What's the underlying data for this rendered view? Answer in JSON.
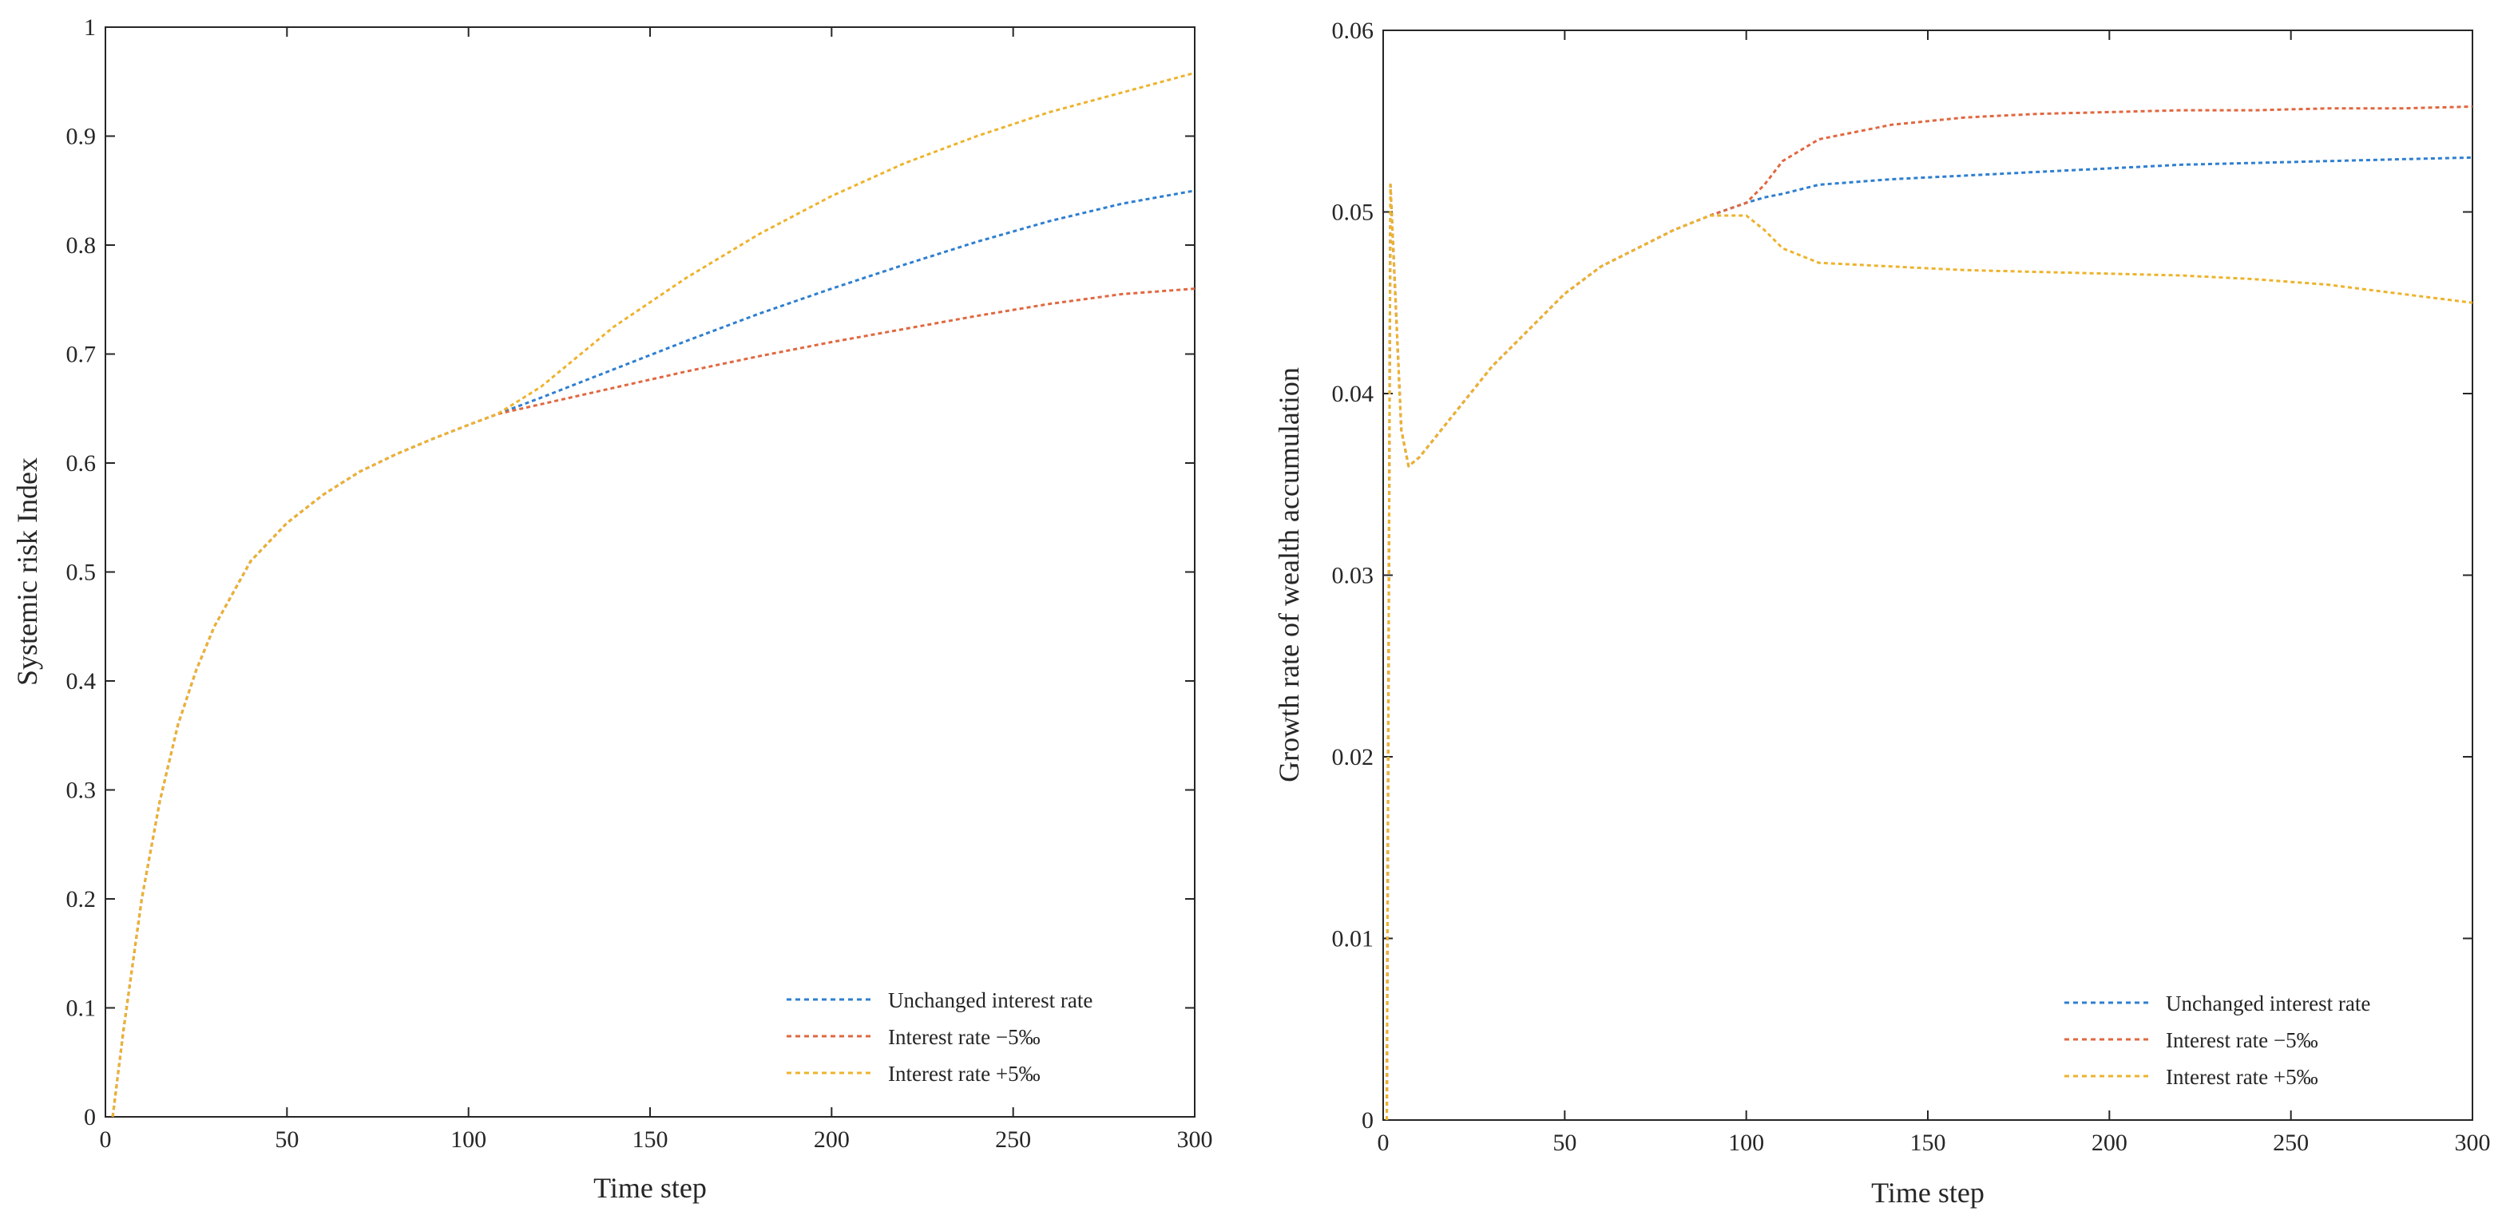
{
  "chart_data": [
    {
      "type": "line",
      "title": "",
      "xlabel": "Time step",
      "ylabel": "Systemic risk Index",
      "xlim": [
        0,
        300
      ],
      "ylim": [
        0,
        1
      ],
      "xticks": [
        0,
        50,
        100,
        150,
        200,
        250,
        300
      ],
      "yticks": [
        0,
        0.1,
        0.2,
        0.3,
        0.4,
        0.5,
        0.6,
        0.7,
        0.8,
        0.9,
        1
      ],
      "ytick_labels": [
        "0",
        "0.1",
        "0.2",
        "0.3",
        "0.4",
        "0.5",
        "0.6",
        "0.7",
        "0.8",
        "0.9",
        "1"
      ],
      "legend_position": "bottom-right",
      "series": [
        {
          "name": "Unchanged interest rate",
          "color": "#2f7fcf",
          "x": [
            2,
            5,
            10,
            15,
            20,
            25,
            30,
            40,
            50,
            60,
            70,
            80,
            90,
            100,
            108,
            120,
            140,
            160,
            180,
            200,
            220,
            240,
            260,
            280,
            300
          ],
          "y": [
            0,
            0.08,
            0.2,
            0.29,
            0.36,
            0.41,
            0.45,
            0.51,
            0.545,
            0.571,
            0.592,
            0.608,
            0.622,
            0.635,
            0.645,
            0.66,
            0.686,
            0.712,
            0.737,
            0.76,
            0.782,
            0.803,
            0.822,
            0.838,
            0.85
          ]
        },
        {
          "name": "Interest rate −5‰",
          "color": "#e06840",
          "x": [
            2,
            5,
            10,
            15,
            20,
            25,
            30,
            40,
            50,
            60,
            70,
            80,
            90,
            100,
            108,
            120,
            140,
            160,
            180,
            200,
            220,
            240,
            260,
            280,
            300
          ],
          "y": [
            0,
            0.08,
            0.2,
            0.29,
            0.36,
            0.41,
            0.45,
            0.51,
            0.545,
            0.571,
            0.592,
            0.608,
            0.622,
            0.635,
            0.645,
            0.654,
            0.669,
            0.684,
            0.698,
            0.711,
            0.723,
            0.735,
            0.746,
            0.755,
            0.76
          ]
        },
        {
          "name": "Interest rate +5‰",
          "color": "#edb32d",
          "x": [
            2,
            5,
            10,
            15,
            20,
            25,
            30,
            40,
            50,
            60,
            70,
            80,
            90,
            100,
            108,
            120,
            140,
            160,
            180,
            200,
            220,
            240,
            260,
            280,
            300
          ],
          "y": [
            0,
            0.08,
            0.2,
            0.29,
            0.36,
            0.41,
            0.45,
            0.51,
            0.545,
            0.571,
            0.592,
            0.608,
            0.622,
            0.635,
            0.645,
            0.67,
            0.725,
            0.77,
            0.81,
            0.845,
            0.875,
            0.9,
            0.922,
            0.94,
            0.958
          ]
        }
      ]
    },
    {
      "type": "line",
      "title": "",
      "xlabel": "Time step",
      "ylabel": "Growth rate of wealth accumulation",
      "xlim": [
        0,
        300
      ],
      "ylim": [
        0,
        0.06
      ],
      "xticks": [
        0,
        50,
        100,
        150,
        200,
        250,
        300
      ],
      "yticks": [
        0,
        0.01,
        0.02,
        0.03,
        0.04,
        0.05,
        0.06
      ],
      "ytick_labels": [
        "0",
        "0.01",
        "0.02",
        "0.03",
        "0.04",
        "0.05",
        "0.06"
      ],
      "legend_position": "bottom-right",
      "series": [
        {
          "name": "Unchanged interest rate",
          "color": "#2f7fcf",
          "x": [
            1,
            2,
            5,
            7,
            10,
            20,
            30,
            40,
            50,
            60,
            70,
            80,
            90,
            100,
            105,
            110,
            120,
            140,
            160,
            180,
            200,
            220,
            240,
            260,
            280,
            300
          ],
          "y": [
            0,
            0.0515,
            0.038,
            0.036,
            0.0365,
            0.039,
            0.0415,
            0.0435,
            0.0455,
            0.047,
            0.048,
            0.049,
            0.0498,
            0.0505,
            0.0508,
            0.051,
            0.0515,
            0.0518,
            0.052,
            0.0522,
            0.0524,
            0.0526,
            0.0527,
            0.0528,
            0.0529,
            0.053
          ]
        },
        {
          "name": "Interest rate −5‰",
          "color": "#e06840",
          "x": [
            1,
            2,
            5,
            7,
            10,
            20,
            30,
            40,
            50,
            60,
            70,
            80,
            90,
            100,
            105,
            110,
            120,
            140,
            160,
            180,
            200,
            220,
            240,
            260,
            280,
            300
          ],
          "y": [
            0,
            0.0515,
            0.038,
            0.036,
            0.0365,
            0.039,
            0.0415,
            0.0435,
            0.0455,
            0.047,
            0.048,
            0.049,
            0.0498,
            0.0505,
            0.0515,
            0.0528,
            0.054,
            0.0548,
            0.0552,
            0.0554,
            0.0555,
            0.0556,
            0.0556,
            0.0557,
            0.0557,
            0.0558
          ]
        },
        {
          "name": "Interest rate +5‰",
          "color": "#edb32d",
          "x": [
            1,
            2,
            5,
            7,
            10,
            20,
            30,
            40,
            50,
            60,
            70,
            80,
            90,
            100,
            105,
            110,
            120,
            140,
            160,
            180,
            200,
            220,
            240,
            260,
            280,
            300
          ],
          "y": [
            0,
            0.0515,
            0.038,
            0.036,
            0.0365,
            0.039,
            0.0415,
            0.0435,
            0.0455,
            0.047,
            0.048,
            0.049,
            0.0498,
            0.0498,
            0.049,
            0.048,
            0.0472,
            0.047,
            0.0468,
            0.0467,
            0.0466,
            0.0465,
            0.0463,
            0.046,
            0.0455,
            0.045
          ]
        }
      ]
    }
  ]
}
